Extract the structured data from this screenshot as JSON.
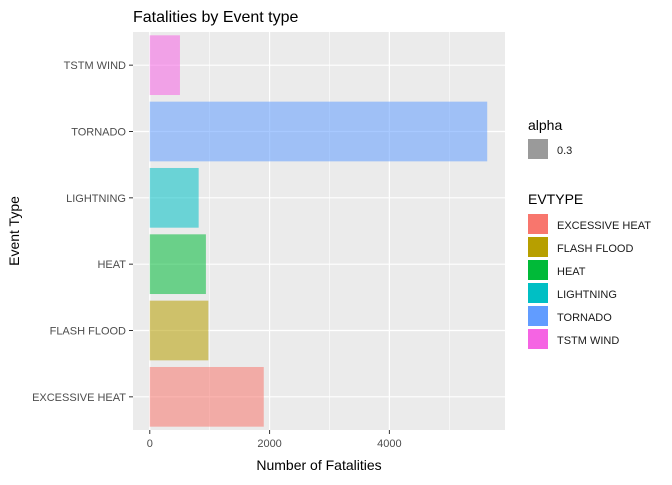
{
  "chart_data": {
    "type": "bar",
    "orientation": "horizontal",
    "title": "Fatalities by Event type",
    "xlabel": "Number of Fatalities",
    "ylabel": "Event Type",
    "categories": [
      "EXCESSIVE HEAT",
      "FLASH FLOOD",
      "HEAT",
      "LIGHTNING",
      "TORNADO",
      "TSTM WIND"
    ],
    "values": [
      1903,
      978,
      937,
      816,
      5633,
      504
    ],
    "colors": [
      "#F8766D",
      "#B79F00",
      "#00BA38",
      "#00BFC4",
      "#619CFF",
      "#F564E3"
    ],
    "xlim": [
      -280,
      5930
    ],
    "xticks": [
      0,
      2000,
      4000
    ],
    "xtick_labels": [
      "0",
      "2000",
      "4000"
    ],
    "bar_alpha": 0.3,
    "grid": true,
    "legend": {
      "placement": "right",
      "alpha_title": "alpha",
      "alpha_label": "0.3",
      "fill_title": "EVTYPE",
      "fill_labels": [
        "EXCESSIVE HEAT",
        "FLASH FLOOD",
        "HEAT",
        "LIGHTNING",
        "TORNADO",
        "TSTM WIND"
      ]
    }
  }
}
